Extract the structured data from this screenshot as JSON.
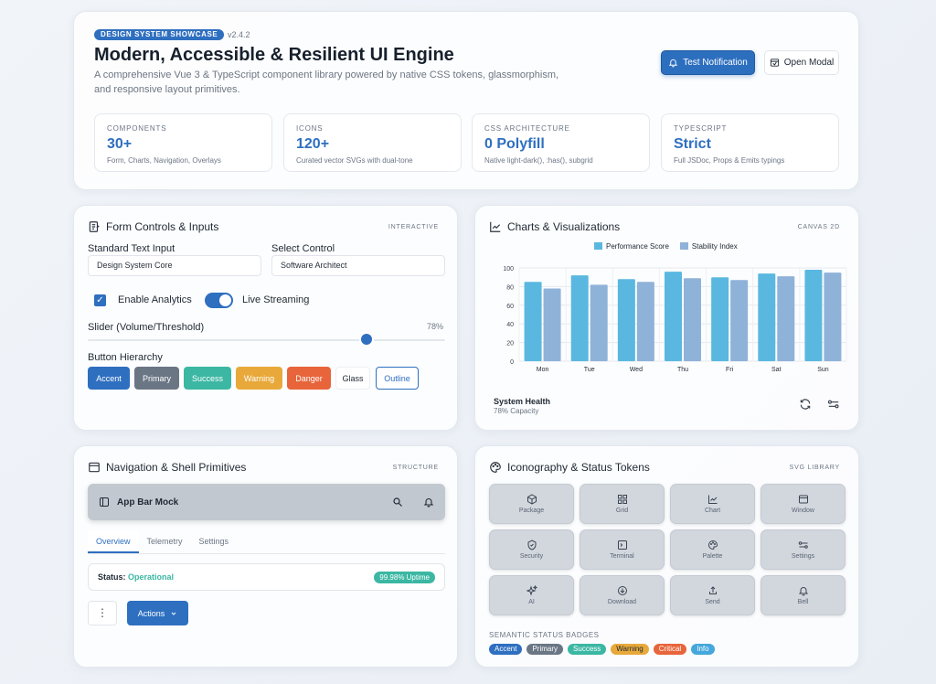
{
  "hero": {
    "badge": "DESIGN SYSTEM SHOWCASE",
    "version": "v2.4.2",
    "title": "Modern, Accessible & Resilient UI Engine",
    "description": "A comprehensive Vue 3 & TypeScript component library powered by native CSS tokens, glassmorphism, and responsive layout primitives.",
    "test_notification": "Test Notification",
    "open_modal": "Open Modal",
    "stats": [
      {
        "label": "COMPONENTS",
        "value": "30+",
        "sub": "Form, Charts, Navigation, Overlays"
      },
      {
        "label": "ICONS",
        "value": "120+",
        "sub": "Curated vector SVGs with dual-tone"
      },
      {
        "label": "CSS ARCHITECTURE",
        "value": "0 Polyfill",
        "sub": "Native light-dark(), :has(), subgrid"
      },
      {
        "label": "TYPESCRIPT",
        "value": "Strict",
        "sub": "Full JSDoc, Props & Emits typings"
      }
    ]
  },
  "form": {
    "title": "Form Controls & Inputs",
    "tag": "INTERACTIVE",
    "text_label": "Standard Text Input",
    "text_value": "Design System Core",
    "select_label": "Select Control",
    "select_value": "Software Architect",
    "checkbox_label": "Enable Analytics",
    "checkbox_checked": true,
    "toggle_label": "Live Streaming",
    "toggle_on": true,
    "slider_label": "Slider (Volume/Threshold)",
    "slider_value_text": "78%",
    "slider_value": 0.78,
    "hierarchy_label": "Button Hierarchy",
    "buttons": [
      "Accent",
      "Primary",
      "Success",
      "Warning",
      "Danger",
      "Glass",
      "Outline"
    ]
  },
  "chart": {
    "title": "Charts & Visualizations",
    "tag": "CANVAS 2D",
    "health_title": "System Health",
    "health_sub": "78% Capacity"
  },
  "chart_data": {
    "type": "bar",
    "categories": [
      "Mon",
      "Tue",
      "Wed",
      "Thu",
      "Fri",
      "Sat",
      "Sun"
    ],
    "series": [
      {
        "name": "Performance Score",
        "color": "#5ab8e0",
        "values": [
          85,
          92,
          88,
          96,
          90,
          94,
          98
        ]
      },
      {
        "name": "Stability Index",
        "color": "#8fb2d9",
        "values": [
          78,
          82,
          85,
          89,
          87,
          91,
          95
        ]
      }
    ],
    "ylim": [
      0,
      100
    ],
    "yticks": [
      0,
      20,
      40,
      60,
      80,
      100
    ],
    "grid": true,
    "legend": "top-center"
  },
  "nav": {
    "title": "Navigation & Shell Primitives",
    "tag": "STRUCTURE",
    "appbar_title": "App Bar Mock",
    "tabs": [
      "Overview",
      "Telemetry",
      "Settings"
    ],
    "status_label": "Status:",
    "status_value": "Operational",
    "uptime": "99.98% Uptime",
    "kebab": "⋮",
    "actions": "Actions"
  },
  "icons": {
    "title": "Iconography & Status Tokens",
    "tag": "SVG LIBRARY",
    "tiles": [
      "Package",
      "Grid",
      "Chart",
      "Window",
      "Security",
      "Terminal",
      "Palette",
      "Settings",
      "AI",
      "Download",
      "Send",
      "Bell"
    ],
    "semantic_title": "SEMANTIC STATUS BADGES",
    "badges": [
      {
        "label": "Accent",
        "color": "#2e6fc0"
      },
      {
        "label": "Primary",
        "color": "#6b7685"
      },
      {
        "label": "Success",
        "color": "#3bb7a3"
      },
      {
        "label": "Warning",
        "color": "#e8a93a"
      },
      {
        "label": "Critical",
        "color": "#e8643a"
      },
      {
        "label": "Info",
        "color": "#45a7dc"
      }
    ]
  }
}
